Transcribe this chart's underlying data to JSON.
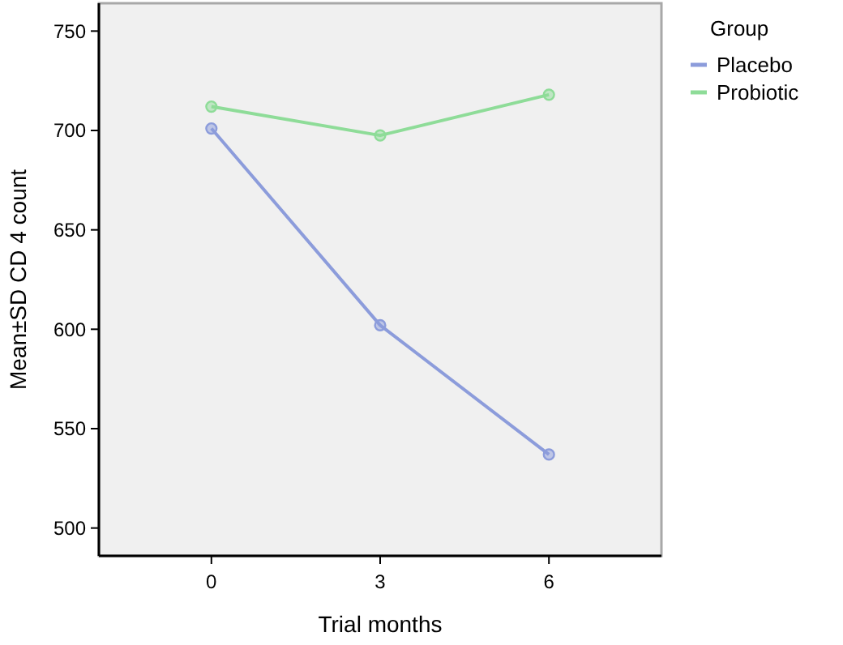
{
  "chart_data": {
    "type": "line",
    "xlabel": "Trial months",
    "ylabel": "Mean±SD CD 4 count",
    "legend_title": "Group",
    "x": [
      0,
      3,
      6
    ],
    "xlim": [
      -2,
      8
    ],
    "xticks": [
      0,
      3,
      6
    ],
    "ylim": [
      486,
      764
    ],
    "yticks": [
      500,
      550,
      600,
      650,
      700,
      750
    ],
    "legend": "top right",
    "marker": "circle",
    "grid": false,
    "series": [
      {
        "name": "Placebo",
        "color": "#8c9cdb",
        "values": [
          701,
          602,
          537
        ]
      },
      {
        "name": "Probiotic",
        "color": "#8edc98",
        "values": [
          712,
          697.5,
          718
        ]
      }
    ]
  }
}
